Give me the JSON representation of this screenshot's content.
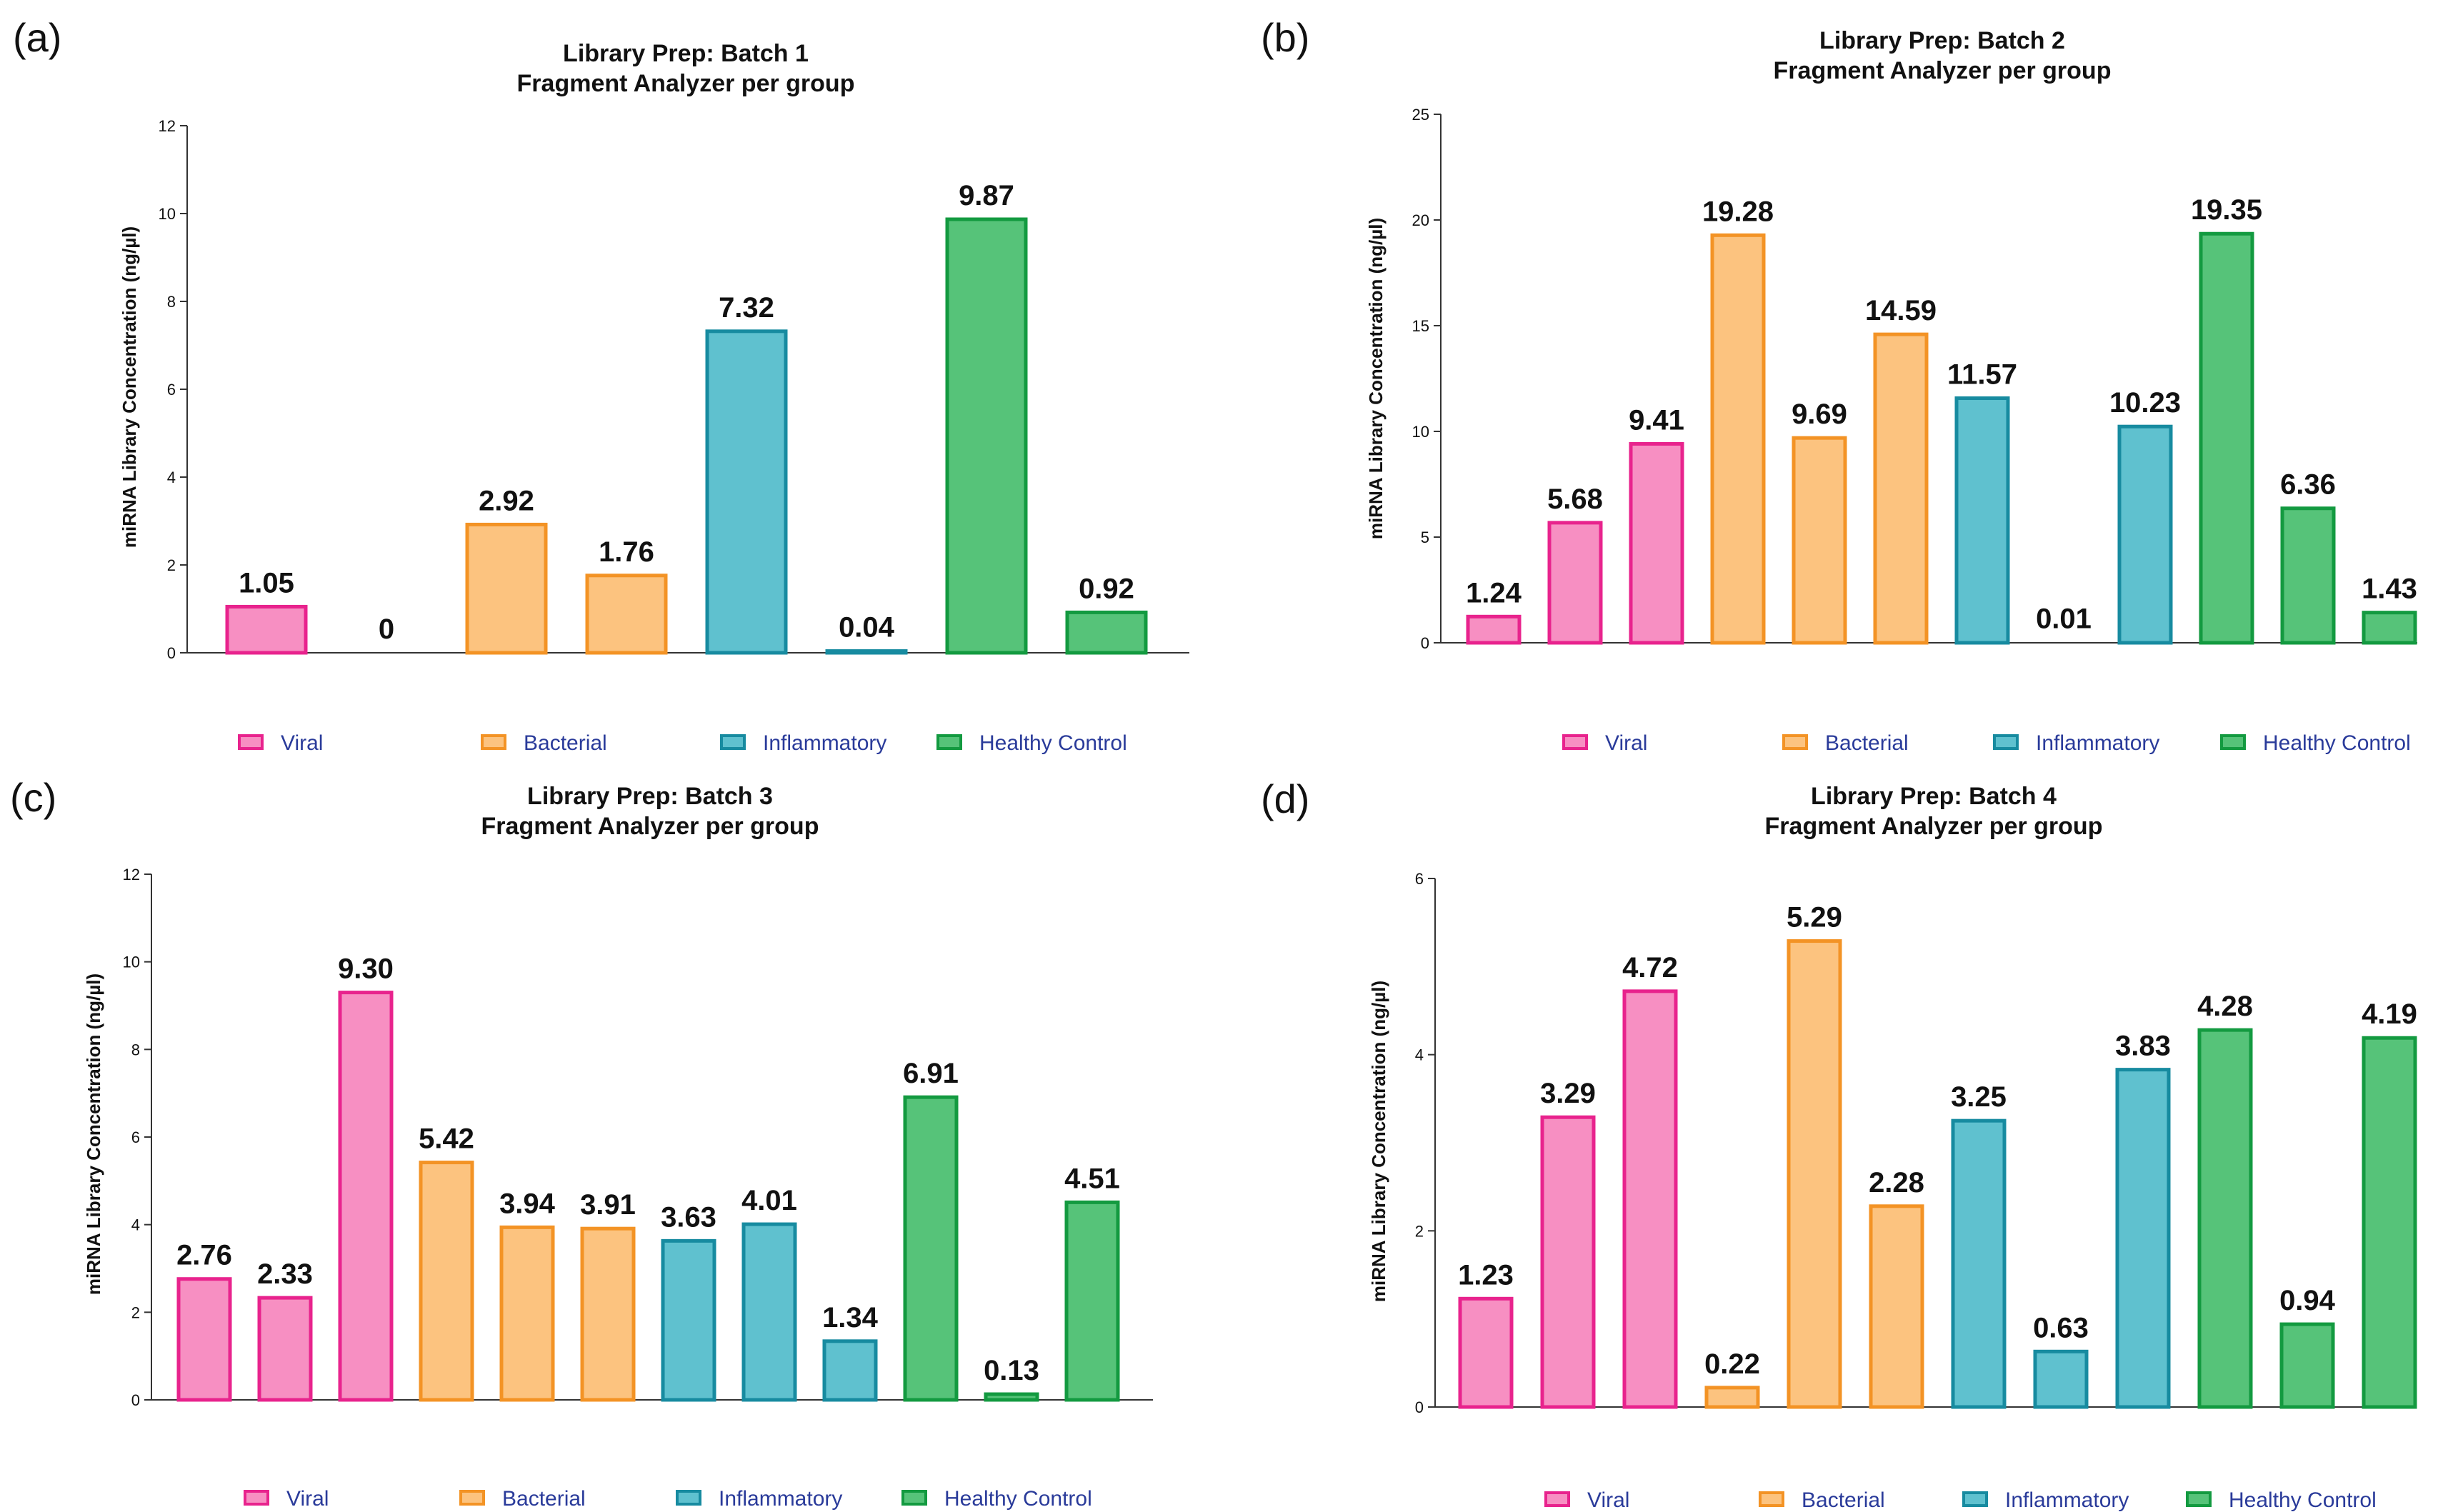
{
  "colors": {
    "Viral": {
      "fill": "#f78fc2",
      "stroke": "#e8238d"
    },
    "Bacterial": {
      "fill": "#fcc37f",
      "stroke": "#f39325"
    },
    "Inflammatory": {
      "fill": "#5fc1cf",
      "stroke": "#178ba0"
    },
    "Healthy Control": {
      "fill": "#56c379",
      "stroke": "#139a40"
    }
  },
  "chart_data": [
    {
      "panel": "(a)",
      "type": "bar",
      "title": [
        "Library Prep:  Batch 1",
        "Fragment Analyzer  per group"
      ],
      "ylabel": "miRNA Library Concentration (ng/µl)",
      "ylim": [
        0,
        12
      ],
      "yticks": [
        "0",
        "2",
        "4",
        "6",
        "8",
        "10",
        "12"
      ],
      "groups": [
        "Viral",
        "Viral",
        "Bacterial",
        "Bacterial",
        "Inflammatory",
        "Inflammatory",
        "Healthy Control",
        "Healthy Control"
      ],
      "values": [
        1.05,
        0,
        2.92,
        1.76,
        7.32,
        0.04,
        9.87,
        0.92
      ],
      "labels": [
        "1.05",
        "0",
        "2.92",
        "1.76",
        "7.32",
        "0.04",
        "9.87",
        "0.92"
      ],
      "legend": [
        "Viral",
        "Bacterial",
        "Inflammatory",
        "Healthy Control"
      ]
    },
    {
      "panel": "(b)",
      "type": "bar",
      "title": [
        "Library Prep:  Batch 2",
        "Fragment Analyzer  per group"
      ],
      "ylabel": "miRNA Library Concentration (ng/µl)",
      "ylim": [
        0,
        25
      ],
      "yticks": [
        "0",
        "5",
        "10",
        "15",
        "20",
        "25"
      ],
      "groups": [
        "Viral",
        "Viral",
        "Viral",
        "Bacterial",
        "Bacterial",
        "Bacterial",
        "Inflammatory",
        "Inflammatory",
        "Inflammatory",
        "Healthy Control",
        "Healthy Control",
        "Healthy Control"
      ],
      "values": [
        1.24,
        5.68,
        9.41,
        19.28,
        9.69,
        14.59,
        11.57,
        0.01,
        10.23,
        19.35,
        6.36,
        1.43
      ],
      "labels": [
        "1.24",
        "5.68",
        "9.41",
        "19.28",
        "9.69",
        "14.59",
        "11.57",
        "0.01",
        "10.23",
        "19.35",
        "6.36",
        "1.43"
      ],
      "legend": [
        "Viral",
        "Bacterial",
        "Inflammatory",
        "Healthy Control"
      ]
    },
    {
      "panel": "(c)",
      "type": "bar",
      "title": [
        "Library Prep:  Batch 3",
        "Fragment Analyzer  per group"
      ],
      "ylabel": "miRNA Library Concentration (ng/µl)",
      "ylim": [
        0,
        12
      ],
      "yticks": [
        "0",
        "2",
        "4",
        "6",
        "8",
        "10",
        "12"
      ],
      "groups": [
        "Viral",
        "Viral",
        "Viral",
        "Bacterial",
        "Bacterial",
        "Bacterial",
        "Inflammatory",
        "Inflammatory",
        "Inflammatory",
        "Healthy Control",
        "Healthy Control",
        "Healthy Control"
      ],
      "values": [
        2.76,
        2.33,
        9.3,
        5.42,
        3.94,
        3.91,
        3.63,
        4.01,
        1.34,
        6.91,
        0.13,
        4.51
      ],
      "labels": [
        "2.76",
        "2.33",
        "9.30",
        "5.42",
        "3.94",
        "3.91",
        "3.63",
        "4.01",
        "1.34",
        "6.91",
        "0.13",
        "4.51"
      ],
      "legend": [
        "Viral",
        "Bacterial",
        "Inflammatory",
        "Healthy Control"
      ]
    },
    {
      "panel": "(d)",
      "type": "bar",
      "title": [
        "Library Prep:  Batch 4",
        "Fragment Analyzer  per group"
      ],
      "ylabel": "miRNA Library Concentration (ng/µl)",
      "ylim": [
        0,
        6
      ],
      "yticks": [
        "0",
        "2",
        "4",
        "6"
      ],
      "groups": [
        "Viral",
        "Viral",
        "Viral",
        "Bacterial",
        "Bacterial",
        "Bacterial",
        "Inflammatory",
        "Inflammatory",
        "Inflammatory",
        "Healthy Control",
        "Healthy Control",
        "Healthy Control"
      ],
      "values": [
        1.23,
        3.29,
        4.72,
        0.22,
        5.29,
        2.28,
        3.25,
        0.63,
        3.83,
        4.28,
        0.94,
        4.19
      ],
      "labels": [
        "1.23",
        "3.29",
        "4.72",
        "0.22",
        "5.29",
        "2.28",
        "3.25",
        "0.63",
        "3.83",
        "4.28",
        "0.94",
        "4.19"
      ],
      "legend": [
        "Viral",
        "Bacterial",
        "Inflammatory",
        "Healthy Control"
      ]
    }
  ]
}
